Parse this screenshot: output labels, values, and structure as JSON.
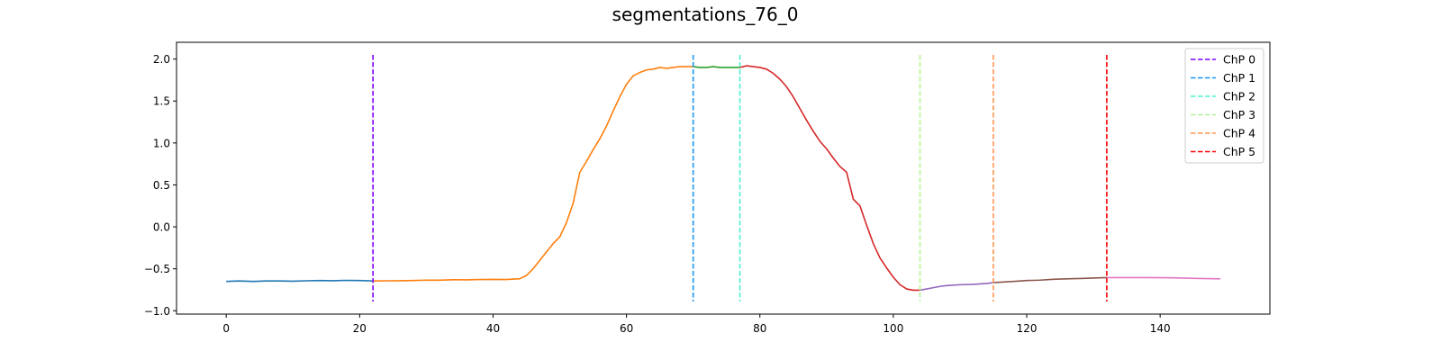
{
  "chart_data": {
    "type": "line",
    "title": "segmentations_76_0",
    "xlabel": "",
    "ylabel": "",
    "xlim": [
      -7.45,
      156.45
    ],
    "ylim": [
      -1.04,
      2.2
    ],
    "x_ticks": [
      0,
      20,
      40,
      60,
      80,
      100,
      120,
      140
    ],
    "y_ticks": [
      -1.0,
      -0.5,
      0.0,
      0.5,
      1.0,
      1.5,
      2.0
    ],
    "grid": false,
    "legend_position": "top-right",
    "segment_colors": [
      "#1f77b4",
      "#ff7f0e",
      "#2ca02c",
      "#d62728",
      "#9467bd",
      "#8c564b",
      "#e377c2"
    ],
    "signal": {
      "x": [
        0,
        2,
        4,
        6,
        8,
        10,
        12,
        14,
        16,
        18,
        20,
        22,
        24,
        26,
        28,
        30,
        32,
        34,
        36,
        38,
        40,
        42,
        44,
        45,
        46,
        47,
        48,
        49,
        50,
        51,
        52,
        53,
        54,
        55,
        56,
        57,
        58,
        59,
        60,
        61,
        62,
        63,
        64,
        65,
        66,
        67,
        68,
        69,
        70,
        71,
        72,
        73,
        74,
        75,
        76,
        77,
        78,
        79,
        80,
        81,
        82,
        83,
        84,
        85,
        86,
        87,
        88,
        89,
        90,
        91,
        92,
        93,
        94,
        95,
        96,
        97,
        98,
        99,
        100,
        101,
        102,
        103,
        104,
        105,
        106,
        107,
        108,
        110,
        112,
        114,
        115,
        116,
        118,
        120,
        122,
        124,
        126,
        128,
        130,
        132,
        134,
        136,
        138,
        140,
        142,
        144,
        146,
        149
      ],
      "y": [
        -0.65,
        -0.645,
        -0.65,
        -0.645,
        -0.645,
        -0.648,
        -0.643,
        -0.64,
        -0.642,
        -0.638,
        -0.64,
        -0.645,
        -0.643,
        -0.642,
        -0.64,
        -0.635,
        -0.636,
        -0.63,
        -0.632,
        -0.628,
        -0.626,
        -0.628,
        -0.618,
        -0.58,
        -0.5,
        -0.4,
        -0.3,
        -0.2,
        -0.12,
        0.05,
        0.28,
        0.65,
        0.78,
        0.92,
        1.05,
        1.2,
        1.38,
        1.55,
        1.7,
        1.8,
        1.84,
        1.87,
        1.88,
        1.9,
        1.89,
        1.9,
        1.91,
        1.91,
        1.91,
        1.9,
        1.9,
        1.91,
        1.9,
        1.9,
        1.9,
        1.9,
        1.92,
        1.91,
        1.9,
        1.88,
        1.83,
        1.76,
        1.67,
        1.55,
        1.41,
        1.27,
        1.14,
        1.02,
        0.93,
        0.82,
        0.72,
        0.65,
        0.33,
        0.25,
        0.02,
        -0.2,
        -0.37,
        -0.49,
        -0.6,
        -0.69,
        -0.74,
        -0.755,
        -0.755,
        -0.74,
        -0.725,
        -0.71,
        -0.7,
        -0.69,
        -0.685,
        -0.675,
        -0.665,
        -0.66,
        -0.65,
        -0.64,
        -0.635,
        -0.625,
        -0.62,
        -0.615,
        -0.61,
        -0.605,
        -0.605,
        -0.605,
        -0.605,
        -0.606,
        -0.608,
        -0.612,
        -0.615,
        -0.62
      ]
    },
    "change_points": [
      {
        "label": "ChP 0",
        "x": 22,
        "color": "#7f00ff"
      },
      {
        "label": "ChP 1",
        "x": 70,
        "color": "#1996f3"
      },
      {
        "label": "ChP 2",
        "x": 77,
        "color": "#4df3ce"
      },
      {
        "label": "ChP 3",
        "x": 104,
        "color": "#b2f396"
      },
      {
        "label": "ChP 4",
        "x": 115,
        "color": "#ff964f"
      },
      {
        "label": "ChP 5",
        "x": 132,
        "color": "#ff0000"
      }
    ]
  }
}
